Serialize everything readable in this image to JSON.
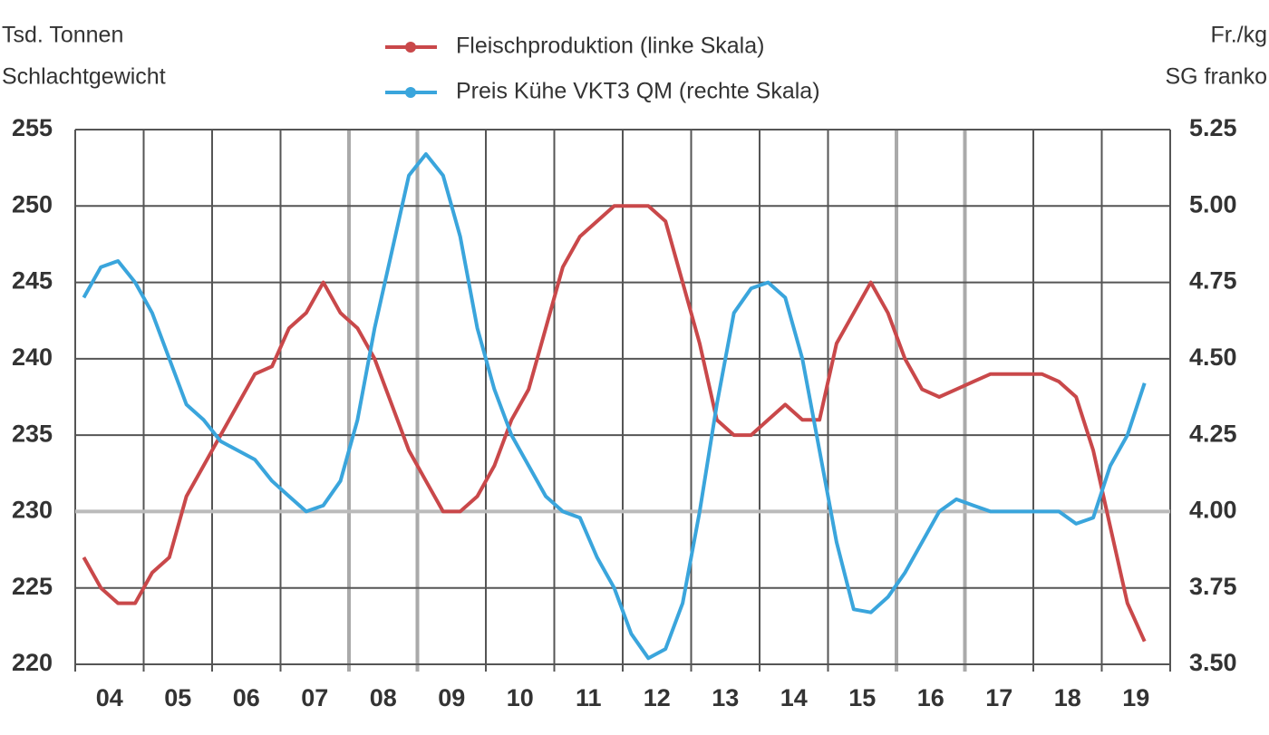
{
  "chart_data": {
    "type": "line",
    "ylabel": [
      "Tsd. Tonnen",
      "Schlachtgewicht"
    ],
    "y2label": [
      "Fr./kg",
      "SG franko"
    ],
    "categories": [
      null,
      "04",
      null,
      null,
      null,
      "05",
      null,
      null,
      null,
      "06",
      null,
      null,
      null,
      "07",
      null,
      null,
      null,
      "08",
      null,
      null,
      null,
      "09",
      null,
      null,
      null,
      "10",
      null,
      null,
      null,
      "11",
      null,
      null,
      null,
      "12",
      null,
      null,
      null,
      "13",
      null,
      null,
      null,
      "14",
      null,
      null,
      null,
      "15",
      null,
      null,
      null,
      "16",
      null,
      null,
      null,
      "17",
      null,
      null,
      null,
      "18",
      null,
      null,
      null,
      "19",
      null
    ],
    "ylim": [
      220,
      255
    ],
    "yticks": [
      220,
      225,
      230,
      235,
      240,
      245,
      250,
      255
    ],
    "y2lim": [
      3.5,
      5.25
    ],
    "y2ticks": [
      {
        "value": 3.5,
        "label": "3.50"
      },
      3.75,
      {
        "value": 4,
        "label": "4.00"
      },
      4.25,
      {
        "value": 4.5,
        "label": "4.50"
      },
      4.75,
      {
        "value": 5,
        "label": "5.00"
      },
      5.25
    ],
    "grid": true,
    "series": [
      {
        "name": "Fleischproduktion (linke Skala)",
        "color": "#c9484a",
        "values": [
          227,
          225,
          224,
          224,
          226,
          227,
          231,
          233,
          235,
          237,
          239,
          239.5,
          242,
          243,
          245,
          243,
          242,
          240,
          237,
          234,
          232,
          230,
          230,
          231,
          233,
          236,
          238,
          242,
          246,
          248,
          249,
          250,
          250,
          250,
          249,
          245,
          241,
          236,
          235,
          235,
          236,
          237,
          236,
          236,
          241,
          243,
          245,
          243,
          240,
          238,
          237.5,
          238,
          238.5,
          239,
          239,
          239,
          239,
          238.5,
          237.5,
          234,
          229,
          224,
          221.5
        ]
      },
      {
        "name": "Preis Kühe VKT3 QM (rechte Skala)",
        "color": "#3aa5dc",
        "axis": "y2",
        "values": [
          4.7,
          4.8,
          4.82,
          4.75,
          4.65,
          4.5,
          4.35,
          4.3,
          4.23,
          4.2,
          4.17,
          4.1,
          4.05,
          4.0,
          4.02,
          4.1,
          4.3,
          4.6,
          4.85,
          5.1,
          5.17,
          5.1,
          4.9,
          4.6,
          4.4,
          4.25,
          4.15,
          4.05,
          4.0,
          3.98,
          3.85,
          3.75,
          3.6,
          3.52,
          3.55,
          3.7,
          4.0,
          4.35,
          4.65,
          4.73,
          4.75,
          4.7,
          4.5,
          4.2,
          3.9,
          3.68,
          3.67,
          3.72,
          3.8,
          3.9,
          4.0,
          4.04,
          4.02,
          4.0,
          4.0,
          4.0,
          4.0,
          4.0,
          3.96,
          3.98,
          4.15,
          4.25,
          4.42
        ]
      }
    ]
  }
}
